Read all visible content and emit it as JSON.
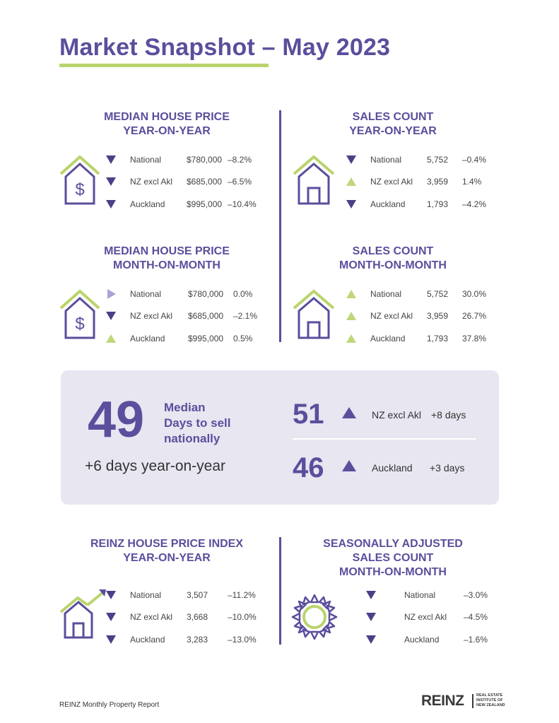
{
  "page": {
    "title": "Market Snapshot – May 2023",
    "footer": "REINZ Monthly Property Report"
  },
  "logo": {
    "word": "REINZ",
    "line1": "REAL ESTATE",
    "line2": "INSTITUTE OF",
    "line3": "NEW ZEALAND"
  },
  "colors": {
    "purple": "#5b4e9c",
    "dark_purple": "#4b4087",
    "green": "#bfd77a",
    "box_bg": "#e7e6f1"
  },
  "median_yoy": {
    "head1": "MEDIAN HOUSE PRICE",
    "head2": "YEAR-ON-YEAR",
    "icon": "house-dollar-icon",
    "rows": [
      {
        "dir": "down",
        "region": "National",
        "value": "$780,000",
        "change": "–8.2%"
      },
      {
        "dir": "down",
        "region": "NZ excl Akl",
        "value": "$685,000",
        "change": "–6.5%"
      },
      {
        "dir": "down",
        "region": "Auckland",
        "value": "$995,000",
        "change": "–10.4%"
      }
    ]
  },
  "sales_yoy": {
    "head1": "SALES COUNT",
    "head2": "YEAR-ON-YEAR",
    "icon": "house-icon",
    "rows": [
      {
        "dir": "down",
        "region": "National",
        "value": "5,752",
        "change": "–0.4%"
      },
      {
        "dir": "up",
        "region": "NZ excl Akl",
        "value": "3,959",
        "change": "1.4%"
      },
      {
        "dir": "down",
        "region": "Auckland",
        "value": "1,793",
        "change": "–4.2%"
      }
    ]
  },
  "median_mom": {
    "head1": "MEDIAN HOUSE PRICE",
    "head2": "MONTH-ON-MONTH",
    "icon": "house-dollar-icon",
    "rows": [
      {
        "dir": "flat",
        "region": "National",
        "value": "$780,000",
        "change": "0.0%"
      },
      {
        "dir": "down",
        "region": "NZ excl Akl",
        "value": "$685,000",
        "change": "–2.1%"
      },
      {
        "dir": "up",
        "region": "Auckland",
        "value": "$995,000",
        "change": "0.5%"
      }
    ]
  },
  "sales_mom": {
    "head1": "SALES COUNT",
    "head2": "MONTH-ON-MONTH",
    "icon": "house-icon",
    "rows": [
      {
        "dir": "up",
        "region": "National",
        "value": "5,752",
        "change": "30.0%"
      },
      {
        "dir": "up",
        "region": "NZ excl Akl",
        "value": "3,959",
        "change": "26.7%"
      },
      {
        "dir": "up",
        "region": "Auckland",
        "value": "1,793",
        "change": "37.8%"
      }
    ]
  },
  "days_to_sell": {
    "national_days": "49",
    "label_line1": "Median",
    "label_line2": "Days to sell",
    "label_line3": "nationally",
    "yoy_text": "+6 days year-on-year",
    "nz_excl_akl": {
      "days": "51",
      "label": "NZ excl Akl",
      "change": "+8 days"
    },
    "auckland": {
      "days": "46",
      "label": "Auckland",
      "change": "+3 days"
    }
  },
  "hpi_yoy": {
    "head1": "REINZ HOUSE PRICE INDEX",
    "head2": "YEAR-ON-YEAR",
    "icon": "house-rising-arrow-icon",
    "rows": [
      {
        "dir": "down",
        "region": "National",
        "value": "3,507",
        "change": "–11.2%"
      },
      {
        "dir": "down",
        "region": "NZ excl Akl",
        "value": "3,668",
        "change": "–10.0%"
      },
      {
        "dir": "down",
        "region": "Auckland",
        "value": "3,283",
        "change": "–13.0%"
      }
    ]
  },
  "seasonal_mom": {
    "head1": "SEASONALLY ADJUSTED",
    "head2": "SALES COUNT",
    "head3": "MONTH-ON-MONTH",
    "icon": "sun-icon",
    "rows": [
      {
        "dir": "down",
        "region": "National",
        "change": "–3.0%"
      },
      {
        "dir": "down",
        "region": "NZ excl Akl",
        "change": "–4.5%"
      },
      {
        "dir": "down",
        "region": "Auckland",
        "change": "–1.6%"
      }
    ]
  }
}
